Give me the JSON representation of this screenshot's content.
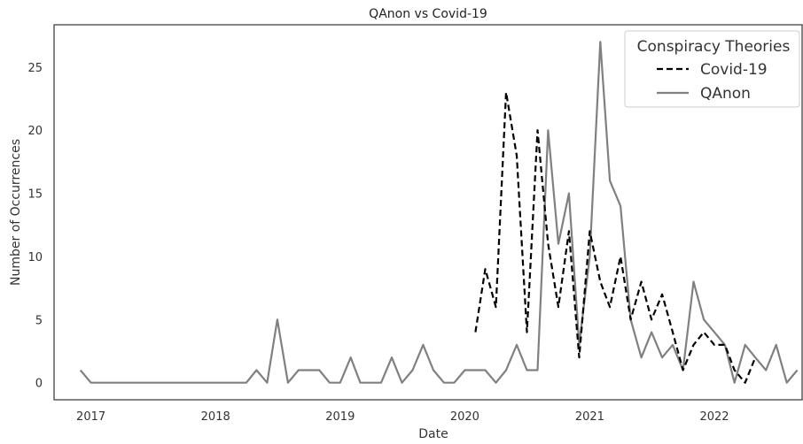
{
  "chart_data": {
    "type": "line",
    "title": "QAnon vs Covid-19",
    "xlabel": "Date",
    "ylabel": "Number of Occurrences",
    "xlim": [
      "2016-09-15",
      "2022-09-15"
    ],
    "ylim": [
      -1.35,
      28.35
    ],
    "x_ticks": [
      "2017",
      "2018",
      "2019",
      "2020",
      "2021",
      "2022"
    ],
    "y_ticks": [
      0,
      5,
      10,
      15,
      20,
      25
    ],
    "grid": false,
    "legend": {
      "title": "Conspiracy Theories",
      "position": "top-right"
    },
    "series": [
      {
        "name": "Covid-19",
        "style": "dashed",
        "color": "#000000",
        "points": [
          [
            "2020-02-01",
            4
          ],
          [
            "2020-03-01",
            9
          ],
          [
            "2020-04-01",
            6
          ],
          [
            "2020-05-01",
            23
          ],
          [
            "2020-06-01",
            18
          ],
          [
            "2020-07-01",
            4
          ],
          [
            "2020-08-01",
            20
          ],
          [
            "2020-09-01",
            11
          ],
          [
            "2020-10-01",
            6
          ],
          [
            "2020-11-01",
            12
          ],
          [
            "2020-12-01",
            2
          ],
          [
            "2021-01-01",
            12
          ],
          [
            "2021-02-01",
            8
          ],
          [
            "2021-03-01",
            6
          ],
          [
            "2021-04-01",
            10
          ],
          [
            "2021-05-01",
            5
          ],
          [
            "2021-06-01",
            8
          ],
          [
            "2021-07-01",
            5
          ],
          [
            "2021-08-01",
            7
          ],
          [
            "2021-09-01",
            4
          ],
          [
            "2021-10-01",
            1
          ],
          [
            "2021-11-01",
            3
          ],
          [
            "2021-12-01",
            4
          ],
          [
            "2022-01-01",
            3
          ],
          [
            "2022-02-01",
            3
          ],
          [
            "2022-03-01",
            1
          ],
          [
            "2022-04-01",
            0
          ],
          [
            "2022-05-01",
            2
          ]
        ]
      },
      {
        "name": "QAnon",
        "style": "solid",
        "color": "#808080",
        "points": [
          [
            "2016-12-01",
            1
          ],
          [
            "2017-01-01",
            0
          ],
          [
            "2017-02-01",
            0
          ],
          [
            "2017-03-01",
            0
          ],
          [
            "2017-04-01",
            0
          ],
          [
            "2017-05-01",
            0
          ],
          [
            "2017-06-01",
            0
          ],
          [
            "2017-07-01",
            0
          ],
          [
            "2017-08-01",
            0
          ],
          [
            "2017-09-01",
            0
          ],
          [
            "2017-10-01",
            0
          ],
          [
            "2017-11-01",
            0
          ],
          [
            "2017-12-01",
            0
          ],
          [
            "2018-01-01",
            0
          ],
          [
            "2018-02-01",
            0
          ],
          [
            "2018-03-01",
            0
          ],
          [
            "2018-04-01",
            0
          ],
          [
            "2018-05-01",
            1
          ],
          [
            "2018-06-01",
            0
          ],
          [
            "2018-07-01",
            5
          ],
          [
            "2018-08-01",
            0
          ],
          [
            "2018-09-01",
            1
          ],
          [
            "2018-10-01",
            1
          ],
          [
            "2018-11-01",
            1
          ],
          [
            "2018-12-01",
            0
          ],
          [
            "2019-01-01",
            0
          ],
          [
            "2019-02-01",
            2
          ],
          [
            "2019-03-01",
            0
          ],
          [
            "2019-04-01",
            0
          ],
          [
            "2019-05-01",
            0
          ],
          [
            "2019-06-01",
            2
          ],
          [
            "2019-07-01",
            0
          ],
          [
            "2019-08-01",
            1
          ],
          [
            "2019-09-01",
            3
          ],
          [
            "2019-10-01",
            1
          ],
          [
            "2019-11-01",
            0
          ],
          [
            "2019-12-01",
            0
          ],
          [
            "2020-01-01",
            1
          ],
          [
            "2020-02-01",
            1
          ],
          [
            "2020-03-01",
            1
          ],
          [
            "2020-04-01",
            0
          ],
          [
            "2020-05-01",
            1
          ],
          [
            "2020-06-01",
            3
          ],
          [
            "2020-07-01",
            1
          ],
          [
            "2020-08-01",
            1
          ],
          [
            "2020-09-01",
            20
          ],
          [
            "2020-10-01",
            11
          ],
          [
            "2020-11-01",
            15
          ],
          [
            "2020-12-01",
            3
          ],
          [
            "2021-01-01",
            10
          ],
          [
            "2021-02-01",
            27
          ],
          [
            "2021-03-01",
            16
          ],
          [
            "2021-04-01",
            14
          ],
          [
            "2021-05-01",
            5
          ],
          [
            "2021-06-01",
            2
          ],
          [
            "2021-07-01",
            4
          ],
          [
            "2021-08-01",
            2
          ],
          [
            "2021-09-01",
            3
          ],
          [
            "2021-10-01",
            1
          ],
          [
            "2021-11-01",
            8
          ],
          [
            "2021-12-01",
            5
          ],
          [
            "2022-01-01",
            4
          ],
          [
            "2022-02-01",
            3
          ],
          [
            "2022-03-01",
            0
          ],
          [
            "2022-04-01",
            3
          ],
          [
            "2022-05-01",
            2
          ],
          [
            "2022-06-01",
            1
          ],
          [
            "2022-07-01",
            3
          ],
          [
            "2022-08-01",
            0
          ],
          [
            "2022-09-01",
            1
          ]
        ]
      }
    ]
  }
}
